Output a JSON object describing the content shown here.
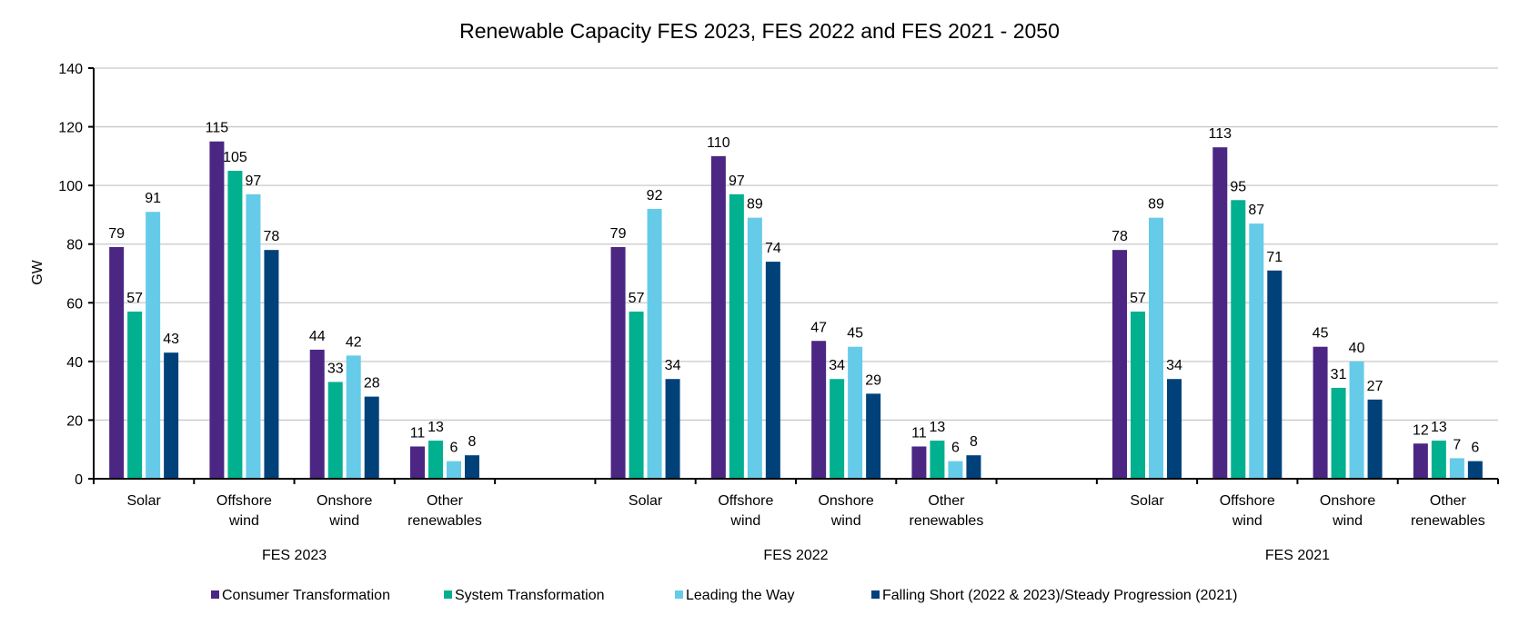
{
  "chart_data": {
    "type": "bar",
    "title": "Renewable Capacity FES 2023, FES 2022 and FES 2021 - 2050",
    "ylabel": "GW",
    "xlabel": "",
    "ylim": [
      0,
      140
    ],
    "yticks": [
      0,
      20,
      40,
      60,
      80,
      100,
      120,
      140
    ],
    "grid": true,
    "legend_position": "bottom",
    "groups": [
      {
        "label": "FES 2023",
        "categories": [
          "Solar",
          "Offshore wind",
          "Onshore wind",
          "Other renewables"
        ]
      },
      {
        "label": "FES 2022",
        "categories": [
          "Solar",
          "Offshore wind",
          "Onshore wind",
          "Other renewables"
        ]
      },
      {
        "label": "FES 2021",
        "categories": [
          "Solar",
          "Offshore wind",
          "Onshore wind",
          "Other renewables"
        ]
      }
    ],
    "series": [
      {
        "name": "Consumer Transformation",
        "color": "#4B2683",
        "values": [
          [
            79,
            115,
            44,
            11
          ],
          [
            79,
            110,
            47,
            11
          ],
          [
            78,
            113,
            45,
            12
          ]
        ]
      },
      {
        "name": "System Transformation",
        "color": "#00B08F",
        "values": [
          [
            57,
            105,
            33,
            13
          ],
          [
            57,
            97,
            34,
            13
          ],
          [
            57,
            95,
            31,
            13
          ]
        ]
      },
      {
        "name": "Leading the Way",
        "color": "#65CBE9",
        "values": [
          [
            91,
            97,
            42,
            6
          ],
          [
            92,
            89,
            45,
            6
          ],
          [
            89,
            87,
            40,
            7
          ]
        ]
      },
      {
        "name": "Falling Short (2022 & 2023)/Steady Progression (2021)",
        "color": "#00417A",
        "values": [
          [
            43,
            78,
            28,
            8
          ],
          [
            34,
            74,
            29,
            8
          ],
          [
            34,
            71,
            27,
            6
          ]
        ]
      }
    ]
  }
}
